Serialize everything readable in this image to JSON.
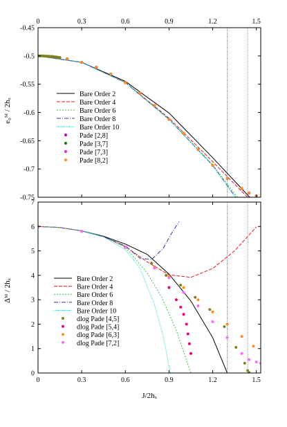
{
  "chart_data": [
    {
      "type": "line",
      "title": "",
      "xlabel": "",
      "ylabel": "e₀ᴹ / 2hₓ",
      "xlim": [
        0,
        1.53
      ],
      "ylim": [
        -0.75,
        -0.45
      ],
      "x_ticks": [
        "0",
        "0.3",
        "0.6",
        "0.9",
        "1.2",
        "1.5"
      ],
      "y_ticks": [
        "-0.45",
        "-0.5",
        "-0.55",
        "-0.6",
        "-0.65",
        "-0.7",
        "-0.75"
      ],
      "x_ticks_on_top": true,
      "vertical_lines": [
        1.3,
        1.44
      ],
      "grid": false,
      "legend_position": "left-middle",
      "series": [
        {
          "name": "Bare Order 2",
          "kind": "line",
          "color": "#000000",
          "dash": "",
          "x": [
            0,
            0.3,
            0.6,
            0.9,
            1.2,
            1.5,
            1.53
          ],
          "y": [
            -0.5,
            -0.5112,
            -0.545,
            -0.601,
            -0.68,
            -0.7625,
            -0.7717
          ]
        },
        {
          "name": "Bare Order 4",
          "kind": "line",
          "color": "#e41a1c",
          "dash": "5,2",
          "x": [
            0,
            0.3,
            0.6,
            0.9,
            1.2,
            1.4,
            1.53
          ],
          "y": [
            -0.5,
            -0.5114,
            -0.5468,
            -0.6101,
            -0.6869,
            -0.7397,
            -0.7717
          ]
        },
        {
          "name": "Bare Order 6",
          "kind": "line",
          "color": "#33cc33",
          "dash": "2,2",
          "x": [
            0,
            0.3,
            0.6,
            0.9,
            1.2,
            1.4,
            1.5
          ],
          "y": [
            -0.5,
            -0.5114,
            -0.5471,
            -0.6117,
            -0.6924,
            -0.76,
            -0.7998
          ]
        },
        {
          "name": "Bare Order 8",
          "kind": "line",
          "color": "#3333aa",
          "dash": "6,2,1,2",
          "x": [
            0,
            0.3,
            0.6,
            0.9,
            1.2,
            1.4,
            1.5
          ],
          "y": [
            -0.5,
            -0.5114,
            -0.5472,
            -0.6121,
            -0.6936,
            -0.7649,
            -0.8051
          ]
        },
        {
          "name": "Bare Order 10",
          "kind": "line",
          "color": "#22dddd",
          "dash": "1,1",
          "x": [
            0,
            0.3,
            0.6,
            0.9,
            1.2,
            1.4,
            1.5
          ],
          "y": [
            -0.5,
            -0.5114,
            -0.5472,
            -0.6122,
            -0.6939,
            -0.7663,
            -0.8107
          ]
        },
        {
          "name": "Pade [2,8]",
          "kind": "points",
          "color": "#cc00cc",
          "x": [
            0,
            0.1,
            0.2,
            0.3,
            0.4,
            0.5,
            0.6,
            0.7,
            0.8,
            0.9,
            1.0,
            1.1,
            1.2,
            1.3,
            1.4,
            1.45,
            1.5
          ],
          "y": [
            -0.5,
            -0.5012,
            -0.505,
            -0.5114,
            -0.5202,
            -0.532,
            -0.5472,
            -0.5658,
            -0.5878,
            -0.6122,
            -0.6368,
            -0.6655,
            -0.6935,
            -0.7168,
            -0.7345,
            -0.7425,
            -0.7475
          ]
        },
        {
          "name": "Pade [3,7]",
          "kind": "points",
          "color": "#117711",
          "x": [
            0,
            0.1,
            0.2,
            0.3,
            0.4,
            0.5,
            0.6,
            0.7,
            0.8,
            0.9,
            1.0,
            1.1,
            1.2,
            1.3,
            1.4,
            1.45,
            1.5
          ],
          "y": [
            -0.5,
            -0.5012,
            -0.505,
            -0.5114,
            -0.5202,
            -0.532,
            -0.5472,
            -0.5658,
            -0.5878,
            -0.6122,
            -0.6368,
            -0.6655,
            -0.6935,
            -0.7168,
            -0.7345,
            -0.7425,
            -0.7475
          ]
        },
        {
          "name": "Pade [7,3]",
          "kind": "points",
          "color": "#ee22ee",
          "x": [
            0,
            0.1,
            0.2,
            0.3,
            0.4,
            0.5,
            0.6,
            0.7,
            0.8,
            0.9,
            1.0,
            1.1,
            1.2,
            1.3,
            1.4,
            1.45,
            1.5
          ],
          "y": [
            -0.5,
            -0.5012,
            -0.505,
            -0.5114,
            -0.5202,
            -0.532,
            -0.5472,
            -0.5658,
            -0.5878,
            -0.6122,
            -0.6368,
            -0.6655,
            -0.6935,
            -0.7168,
            -0.7345,
            -0.7425,
            -0.7475
          ]
        },
        {
          "name": "Pade [8,2]",
          "kind": "points",
          "color": "#ff8c1a",
          "x": [
            0,
            0.1,
            0.2,
            0.3,
            0.4,
            0.5,
            0.6,
            0.7,
            0.8,
            0.9,
            1.0,
            1.1,
            1.2,
            1.3,
            1.4,
            1.45,
            1.5
          ],
          "y": [
            -0.5,
            -0.5012,
            -0.505,
            -0.5114,
            -0.5202,
            -0.532,
            -0.5472,
            -0.5658,
            -0.5878,
            -0.6122,
            -0.6368,
            -0.6655,
            -0.6935,
            -0.7168,
            -0.7345,
            -0.7425,
            -0.7475
          ]
        },
        {
          "name": "",
          "kind": "points",
          "color": "#808020",
          "x": [
            0,
            0.01,
            0.02,
            0.03,
            0.04,
            0.05,
            0.06,
            0.07,
            0.08,
            0.09,
            0.1,
            0.11,
            0.12,
            0.13,
            0.14,
            0.15
          ],
          "y": [
            -0.5,
            -0.5,
            -0.5,
            -0.5,
            -0.5002,
            -0.5003,
            -0.5004,
            -0.5005,
            -0.5007,
            -0.5009,
            -0.5012,
            -0.5015,
            -0.5018,
            -0.5021,
            -0.5025,
            -0.5028
          ]
        }
      ]
    },
    {
      "type": "line",
      "title": "",
      "xlabel": "J/2hₓ",
      "ylabel": "Δᴹ / 2hₓ",
      "xlim": [
        0,
        1.53
      ],
      "ylim": [
        0,
        7
      ],
      "x_ticks": [
        "0",
        "0.3",
        "0.6",
        "0.9",
        "1.2",
        "1.5"
      ],
      "y_ticks": [
        "0",
        "1",
        "2",
        "3",
        "4",
        "5",
        "6",
        "7"
      ],
      "vertical_lines": [
        1.3,
        1.44
      ],
      "grid": false,
      "legend_position": "bottom-left",
      "series": [
        {
          "name": "Bare Order 2",
          "kind": "line",
          "color": "#000000",
          "dash": "",
          "x": [
            0,
            0.15,
            0.3,
            0.45,
            0.6,
            0.75,
            0.9,
            1.05,
            1.2,
            1.3
          ],
          "y": [
            6,
            5.96,
            5.82,
            5.6,
            5.28,
            4.86,
            4.05,
            2.95,
            1.45,
            0
          ]
        },
        {
          "name": "Bare Order 4",
          "kind": "line",
          "color": "#e41a1c",
          "dash": "5,2",
          "x": [
            0,
            0.15,
            0.3,
            0.45,
            0.6,
            0.75,
            0.9,
            1.05,
            1.2,
            1.35,
            1.5
          ],
          "y": [
            6,
            5.96,
            5.82,
            5.58,
            5.18,
            4.55,
            4.02,
            3.92,
            4.28,
            5.0,
            5.98
          ]
        },
        {
          "name": "Bare Order 6",
          "kind": "line",
          "color": "#33cc33",
          "dash": "2,2",
          "x": [
            0,
            0.15,
            0.3,
            0.45,
            0.6,
            0.75,
            0.85,
            0.95,
            1.05
          ],
          "y": [
            6,
            5.96,
            5.82,
            5.58,
            5.15,
            4.1,
            3.1,
            1.75,
            0
          ]
        },
        {
          "name": "Bare Order 8",
          "kind": "line",
          "color": "#3333aa",
          "dash": "6,2,1,2",
          "x": [
            0,
            0.15,
            0.3,
            0.45,
            0.6,
            0.7,
            0.78,
            0.86,
            0.92,
            0.97
          ],
          "y": [
            6,
            5.96,
            5.82,
            5.58,
            5.2,
            4.7,
            4.65,
            5.1,
            5.75,
            6.2
          ]
        },
        {
          "name": "Bare Order 10",
          "kind": "line",
          "color": "#22dddd",
          "dash": "1,1",
          "x": [
            0,
            0.15,
            0.3,
            0.45,
            0.6,
            0.7,
            0.8,
            0.86,
            0.91
          ],
          "y": [
            6,
            5.96,
            5.82,
            5.58,
            5.05,
            4.3,
            2.8,
            1.5,
            0
          ]
        },
        {
          "name": "dlog Pade [4,5]",
          "kind": "points",
          "color": "#808020",
          "x": [
            0.0,
            0.3,
            0.6,
            0.78,
            0.88,
            0.98,
            1.08,
            1.18,
            1.28,
            1.36,
            1.42,
            1.44,
            1.45
          ],
          "y": [
            6.0,
            5.8,
            5.15,
            4.5,
            4.0,
            3.6,
            3.1,
            2.6,
            1.9,
            1.05,
            0.4,
            0.1,
            0.02
          ]
        },
        {
          "name": "dlog Pade [5,4]",
          "kind": "points",
          "color": "#e6007e",
          "x": [
            0.0,
            0.3,
            0.6,
            0.8,
            0.9,
            0.95,
            0.98,
            1.0,
            1.02,
            1.03,
            1.04,
            1.05
          ],
          "y": [
            6.0,
            5.8,
            5.15,
            4.3,
            3.5,
            3.0,
            2.7,
            2.4,
            2.0,
            1.6,
            1.2,
            0.8
          ]
        },
        {
          "name": "dlog Pade [6,3]",
          "kind": "points",
          "color": "#ff8c1a",
          "x": [
            0.0,
            0.3,
            0.6,
            0.8,
            0.9,
            1.0,
            1.1,
            1.2,
            1.3,
            1.4,
            1.48
          ],
          "y": [
            6.0,
            5.8,
            5.15,
            4.35,
            3.95,
            3.5,
            3.0,
            2.5,
            2.0,
            1.5,
            1.1
          ]
        },
        {
          "name": "dlog Pade [7,2]",
          "kind": "points",
          "color": "#ff66ff",
          "x": [
            0.0,
            0.3,
            0.6,
            0.8,
            0.9,
            1.0,
            1.1,
            1.2,
            1.3,
            1.4,
            1.45,
            1.5,
            1.53
          ],
          "y": [
            6.0,
            5.8,
            5.15,
            4.3,
            3.9,
            3.3,
            2.75,
            2.1,
            1.45,
            0.8,
            0.55,
            0.45,
            0.4
          ]
        }
      ]
    }
  ]
}
